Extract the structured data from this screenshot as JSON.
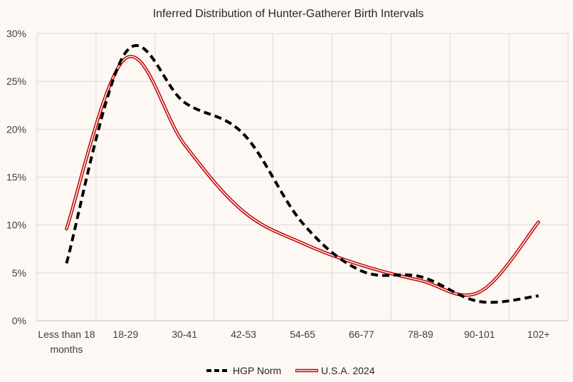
{
  "chart_data": {
    "type": "line",
    "title": "Inferred Distribution of Hunter-Gatherer Birth Intervals",
    "xlabel": "",
    "ylabel": "",
    "categories": [
      [
        "Less than 18",
        "months"
      ],
      [
        "18-29"
      ],
      [
        "30-41"
      ],
      [
        "42-53"
      ],
      [
        "54-65"
      ],
      [
        "66-77"
      ],
      [
        "78-89"
      ],
      [
        "90-101"
      ],
      [
        "102+"
      ]
    ],
    "ylim": [
      0,
      30
    ],
    "yticks": [
      0,
      5,
      10,
      15,
      20,
      25,
      30
    ],
    "ytick_labels": [
      "0%",
      "5%",
      "10%",
      "15%",
      "20%",
      "25%",
      "30%"
    ],
    "grid": true,
    "legend_position": "bottom",
    "series": [
      {
        "name": "HGP Norm",
        "style": "dashed",
        "color": "#000000",
        "values": [
          6.0,
          28.0,
          22.8,
          19.5,
          10.2,
          5.2,
          4.6,
          2.0,
          2.6
        ]
      },
      {
        "name": "U.S.A. 2024",
        "style": "double",
        "color": "#c00000",
        "values": [
          9.6,
          27.4,
          18.4,
          11.4,
          8.1,
          5.8,
          4.2,
          3.0,
          10.3
        ]
      }
    ]
  }
}
